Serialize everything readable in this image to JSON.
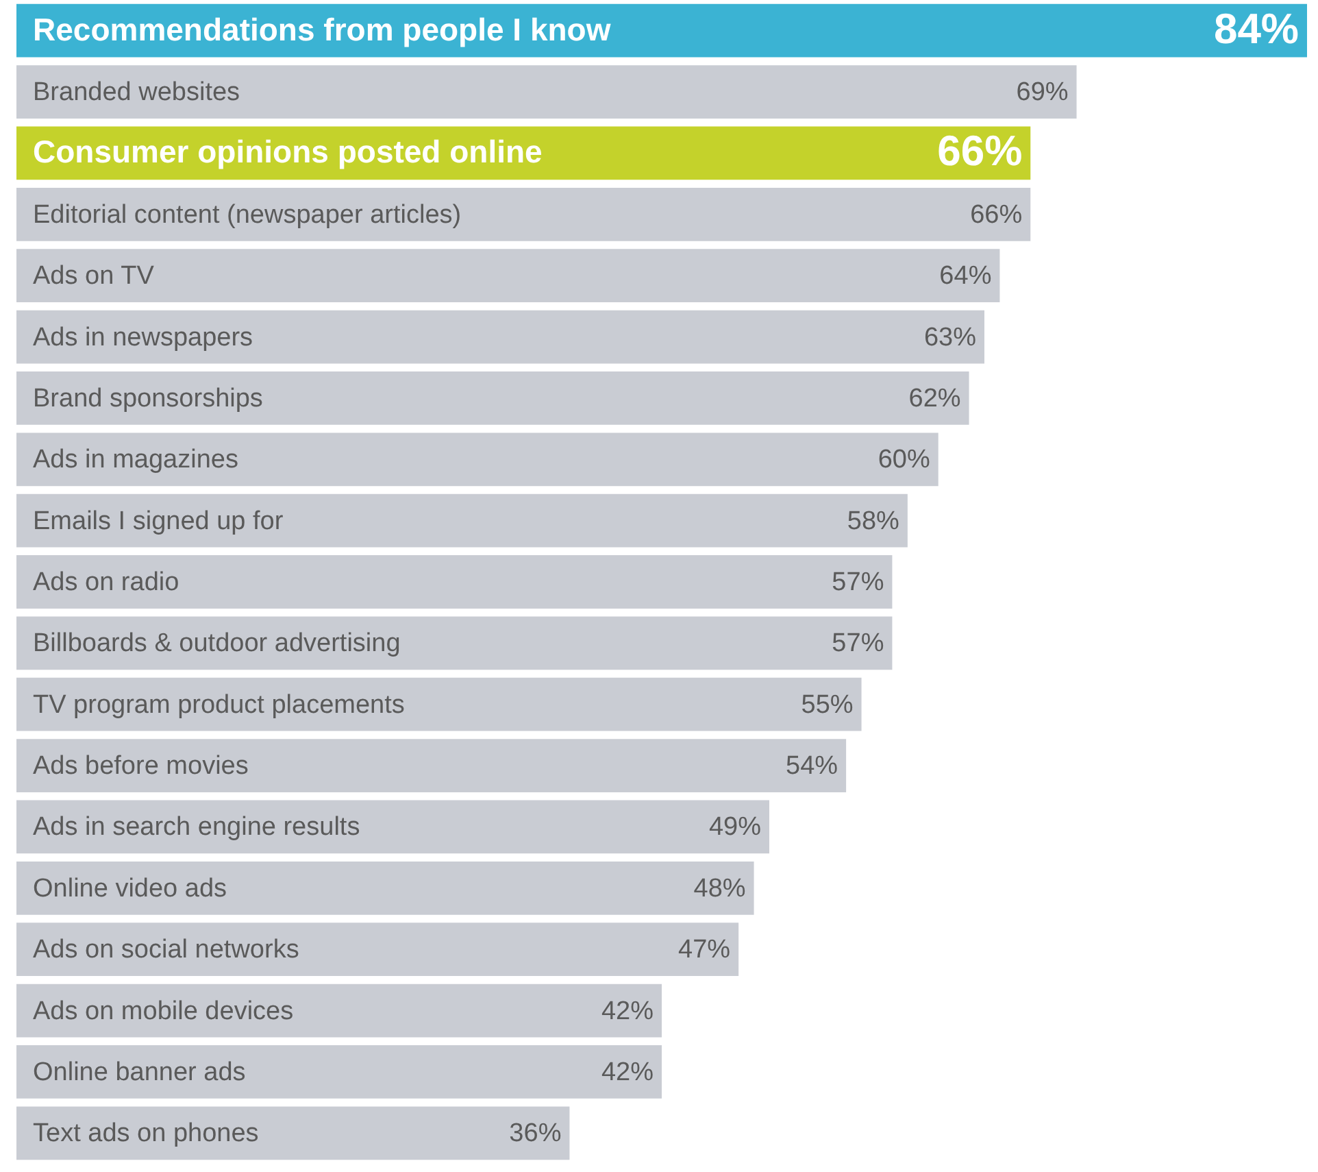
{
  "chart_data": {
    "type": "bar",
    "orientation": "horizontal",
    "value_labels": [
      "84%",
      "69%",
      "66%",
      "66%",
      "64%",
      "63%",
      "62%",
      "60%",
      "58%",
      "57%",
      "57%",
      "55%",
      "54%",
      "49%",
      "48%",
      "47%",
      "42%",
      "42%",
      "36%"
    ],
    "categories": [
      "Recommendations from people I know",
      "Branded websites",
      "Consumer opinions posted online",
      "Editorial content (newspaper articles)",
      "Ads on TV",
      "Ads in newspapers",
      "Brand sponsorships",
      "Ads in magazines",
      "Emails I signed up for",
      "Ads on radio",
      "Billboards & outdoor advertising",
      "TV program product placements",
      "Ads before movies",
      "Ads in search engine results",
      "Online video ads",
      "Ads on social networks",
      "Ads on mobile devices",
      "Online banner ads",
      "Text ads on phones"
    ],
    "values": [
      84,
      69,
      66,
      66,
      64,
      63,
      62,
      60,
      58,
      57,
      57,
      55,
      54,
      49,
      48,
      47,
      42,
      42,
      36
    ],
    "colors": [
      "#3bb3d3",
      "#c9ccd3",
      "#c4d22b",
      "#c9ccd3",
      "#c9ccd3",
      "#c9ccd3",
      "#c9ccd3",
      "#c9ccd3",
      "#c9ccd3",
      "#c9ccd3",
      "#c9ccd3",
      "#c9ccd3",
      "#c9ccd3",
      "#c9ccd3",
      "#c9ccd3",
      "#c9ccd3",
      "#c9ccd3",
      "#c9ccd3",
      "#c9ccd3"
    ]
  }
}
